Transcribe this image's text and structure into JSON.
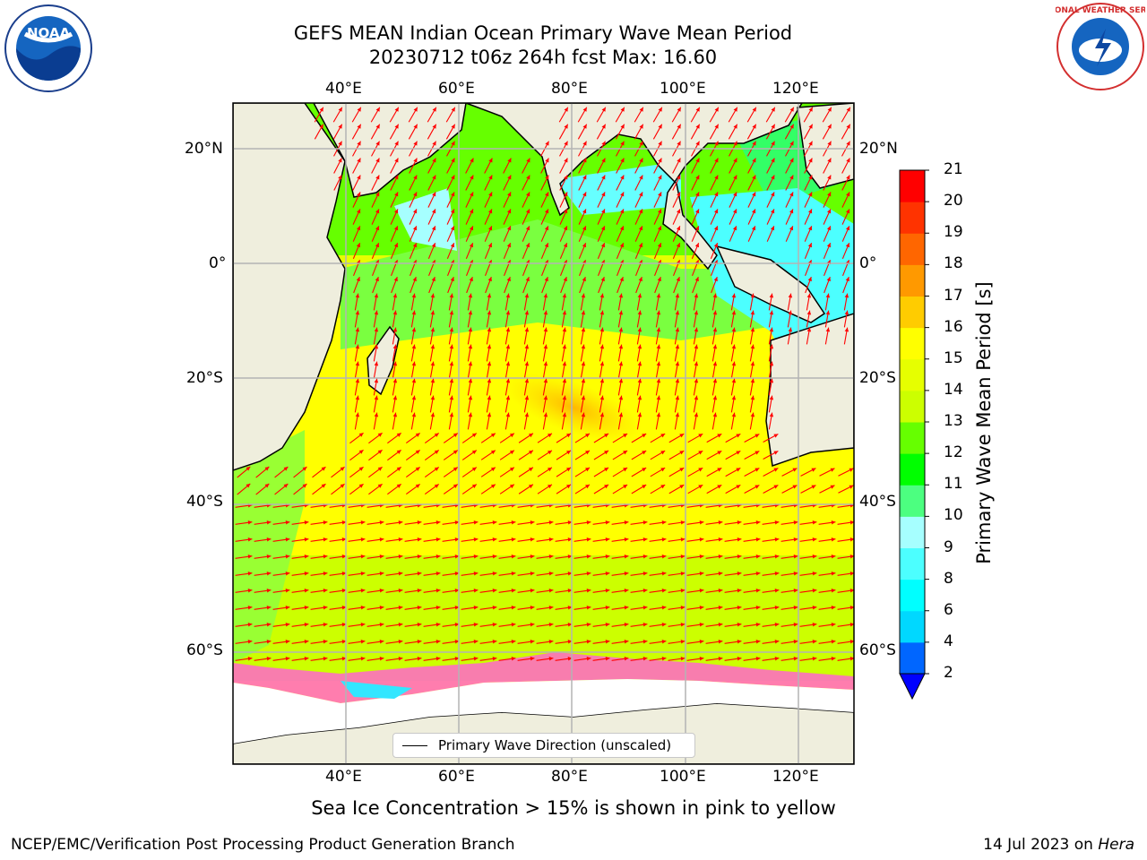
{
  "title": {
    "line1": "GEFS MEAN Indian Ocean Primary Wave Mean Period",
    "line2": "20230712 t06z 264h fcst   Max: 16.60"
  },
  "map": {
    "lon_ticks": [
      "40°E",
      "60°E",
      "80°E",
      "100°E",
      "120°E"
    ],
    "lat_ticks": [
      "20°N",
      "0°",
      "20°S",
      "40°S",
      "60°S"
    ],
    "legend_label": "Primary Wave Direction (unscaled)",
    "colors": {
      "land": "#efeedd",
      "ice": "#ffffff",
      "arrow": "#ff0000",
      "grid": "#b4b4b4"
    }
  },
  "colorbar": {
    "label": "Primary Wave Mean Period [s]",
    "ticks": [
      "21",
      "20",
      "19",
      "18",
      "17",
      "16",
      "15",
      "14",
      "13",
      "12",
      "11",
      "10",
      "9",
      "8",
      "6",
      "4",
      "2"
    ],
    "colors": [
      "#0000ff",
      "#0066ff",
      "#00d8ff",
      "#00ffff",
      "#4cffff",
      "#a6ffff",
      "#4cff80",
      "#00ff00",
      "#66ff00",
      "#ccff00",
      "#e6ff00",
      "#ffff00",
      "#ffcc00",
      "#ff9900",
      "#ff6600",
      "#ff3300",
      "#ff0000"
    ]
  },
  "subtitle": "Sea Ice Concentration > 15% is shown in pink to yellow",
  "footer": {
    "left": "NCEP/EMC/Verification Post Processing Product Generation Branch",
    "right_prefix": "14 Jul 2023 on ",
    "right_host": "Hera"
  },
  "logos": {
    "left": "NOAA",
    "right": "NATIONAL WEATHER SERVICE"
  }
}
